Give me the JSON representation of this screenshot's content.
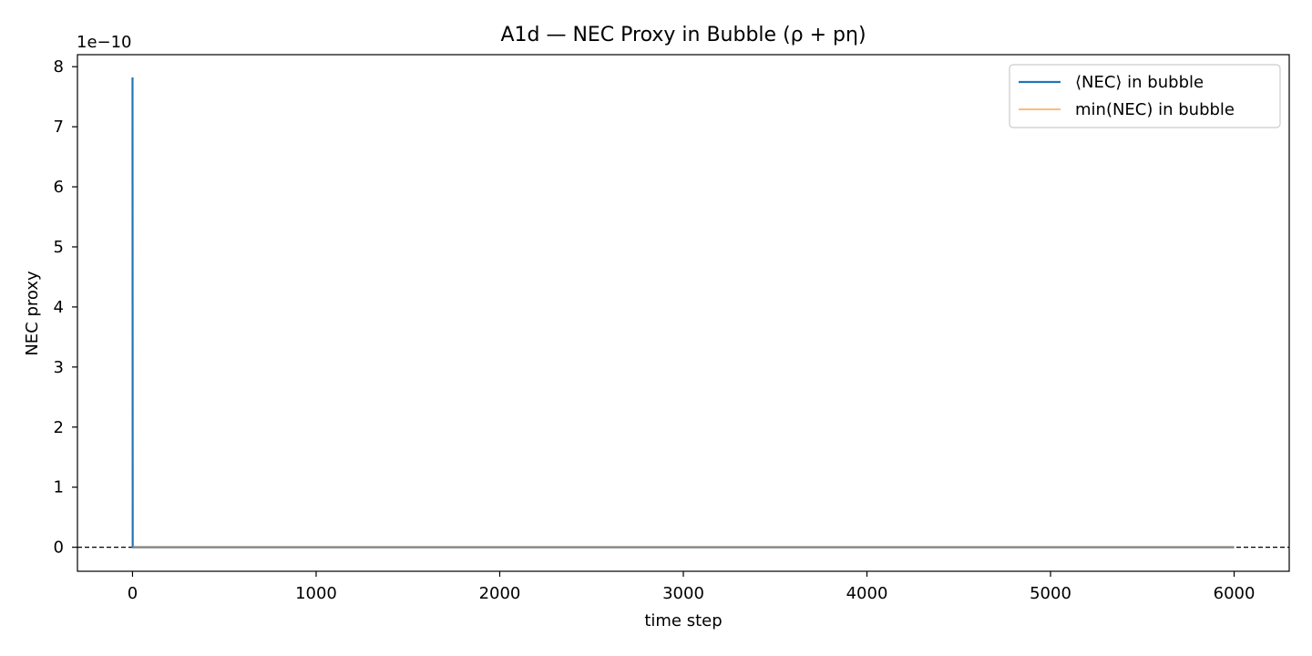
{
  "chart_data": {
    "type": "line",
    "title": "A1d — NEC Proxy in Bubble (ρ + pη)",
    "xlabel": "time step",
    "ylabel": "NEC proxy",
    "y_offset_label": "1e−10",
    "y_scale_exponent": -10,
    "xlim": [
      -300,
      6300
    ],
    "ylim": [
      -0.4,
      8.2
    ],
    "x_ticks": [
      0,
      1000,
      2000,
      3000,
      4000,
      5000,
      6000
    ],
    "x_tick_labels": [
      "0",
      "1000",
      "2000",
      "3000",
      "4000",
      "5000",
      "6000"
    ],
    "y_ticks": [
      0,
      1,
      2,
      3,
      4,
      5,
      6,
      7,
      8
    ],
    "y_tick_labels": [
      "0",
      "1",
      "2",
      "3",
      "4",
      "5",
      "6",
      "7",
      "8"
    ],
    "grid": false,
    "legend_position": "top-right",
    "reference_line": {
      "y": 0,
      "style": "dashed",
      "color": "#000000"
    },
    "series": [
      {
        "name": "⟨NEC⟩ in bubble",
        "color": "#1f77b4",
        "x": [
          0,
          1,
          2,
          1000,
          2000,
          3000,
          4000,
          5000,
          6000
        ],
        "y": [
          7.82,
          0.02,
          0.0,
          0.0,
          0.0,
          0.0,
          0.0,
          0.0,
          0.0
        ]
      },
      {
        "name": "min(NEC) in bubble",
        "color": "#ff7f0e",
        "x": [
          0,
          1000,
          2000,
          3000,
          4000,
          5000,
          6000
        ],
        "y": [
          0.0,
          0.0,
          0.0,
          0.0,
          0.0,
          0.0,
          0.0
        ]
      }
    ]
  }
}
